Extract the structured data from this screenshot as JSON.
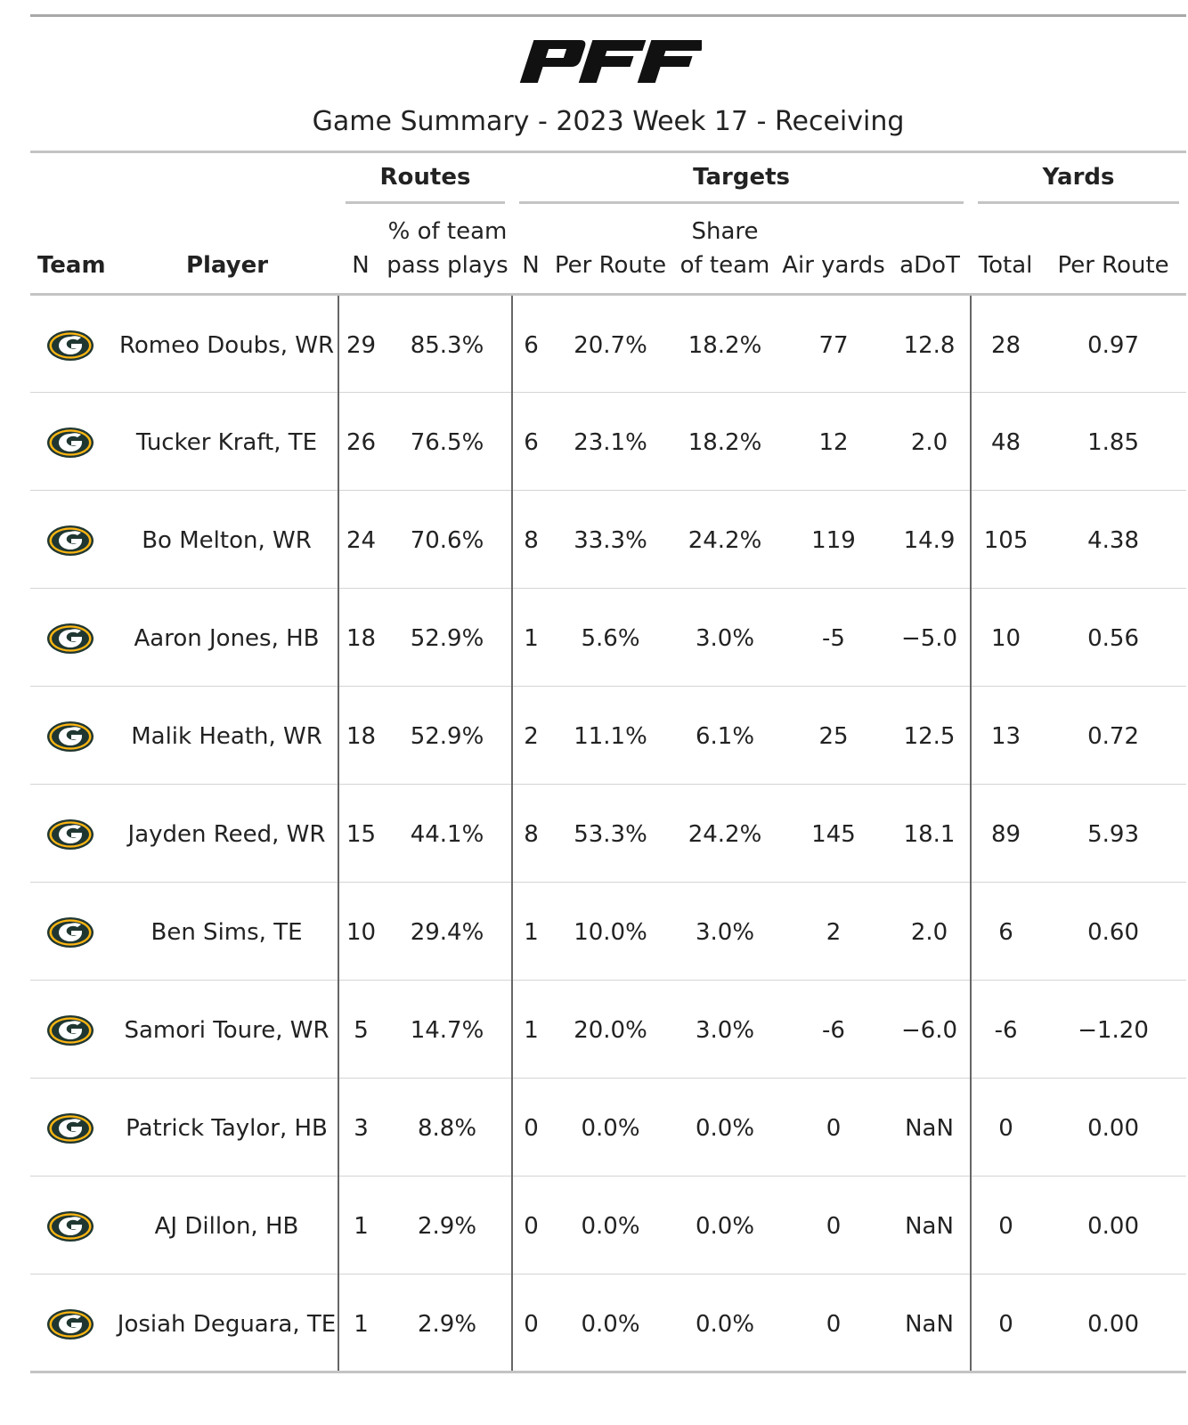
{
  "header": {
    "logo_text": "PFF",
    "subtitle": "Game Summary - 2023 Week 17 - Receiving"
  },
  "groups": {
    "routes": "Routes",
    "targets": "Targets",
    "yards": "Yards"
  },
  "columns": {
    "team": "Team",
    "player": "Player",
    "routes_n": "N",
    "routes_pct_line1": "% of team",
    "routes_pct_line2": "pass plays",
    "targets_n": "N",
    "targets_per_route": "Per Route",
    "targets_share_line1": "Share",
    "targets_share_line2": "of team",
    "air_yards": "Air yards",
    "adot": "aDoT",
    "yards_total": "Total",
    "yards_per_route": "Per Route"
  },
  "colors": {
    "team_logo_green": "#203731",
    "team_logo_gold": "#FFB612"
  },
  "rows": [
    {
      "team_icon": "packers-logo-icon",
      "player": "Romeo Doubs, WR",
      "routes_n": "29",
      "routes_pct": "85.3%",
      "targets_n": "6",
      "targets_per_route": "20.7%",
      "targets_share": "18.2%",
      "air_yards": "77",
      "adot": "12.8",
      "yards_total": "28",
      "yards_per_route": "0.97"
    },
    {
      "team_icon": "packers-logo-icon",
      "player": "Tucker Kraft, TE",
      "routes_n": "26",
      "routes_pct": "76.5%",
      "targets_n": "6",
      "targets_per_route": "23.1%",
      "targets_share": "18.2%",
      "air_yards": "12",
      "adot": "2.0",
      "yards_total": "48",
      "yards_per_route": "1.85"
    },
    {
      "team_icon": "packers-logo-icon",
      "player": "Bo Melton, WR",
      "routes_n": "24",
      "routes_pct": "70.6%",
      "targets_n": "8",
      "targets_per_route": "33.3%",
      "targets_share": "24.2%",
      "air_yards": "119",
      "adot": "14.9",
      "yards_total": "105",
      "yards_per_route": "4.38"
    },
    {
      "team_icon": "packers-logo-icon",
      "player": "Aaron Jones, HB",
      "routes_n": "18",
      "routes_pct": "52.9%",
      "targets_n": "1",
      "targets_per_route": "5.6%",
      "targets_share": "3.0%",
      "air_yards": "-5",
      "adot": "−5.0",
      "yards_total": "10",
      "yards_per_route": "0.56"
    },
    {
      "team_icon": "packers-logo-icon",
      "player": "Malik Heath, WR",
      "routes_n": "18",
      "routes_pct": "52.9%",
      "targets_n": "2",
      "targets_per_route": "11.1%",
      "targets_share": "6.1%",
      "air_yards": "25",
      "adot": "12.5",
      "yards_total": "13",
      "yards_per_route": "0.72"
    },
    {
      "team_icon": "packers-logo-icon",
      "player": "Jayden Reed, WR",
      "routes_n": "15",
      "routes_pct": "44.1%",
      "targets_n": "8",
      "targets_per_route": "53.3%",
      "targets_share": "24.2%",
      "air_yards": "145",
      "adot": "18.1",
      "yards_total": "89",
      "yards_per_route": "5.93"
    },
    {
      "team_icon": "packers-logo-icon",
      "player": "Ben Sims, TE",
      "routes_n": "10",
      "routes_pct": "29.4%",
      "targets_n": "1",
      "targets_per_route": "10.0%",
      "targets_share": "3.0%",
      "air_yards": "2",
      "adot": "2.0",
      "yards_total": "6",
      "yards_per_route": "0.60"
    },
    {
      "team_icon": "packers-logo-icon",
      "player": "Samori Toure, WR",
      "routes_n": "5",
      "routes_pct": "14.7%",
      "targets_n": "1",
      "targets_per_route": "20.0%",
      "targets_share": "3.0%",
      "air_yards": "-6",
      "adot": "−6.0",
      "yards_total": "-6",
      "yards_per_route": "−1.20"
    },
    {
      "team_icon": "packers-logo-icon",
      "player": "Patrick Taylor, HB",
      "routes_n": "3",
      "routes_pct": "8.8%",
      "targets_n": "0",
      "targets_per_route": "0.0%",
      "targets_share": "0.0%",
      "air_yards": "0",
      "adot": "NaN",
      "yards_total": "0",
      "yards_per_route": "0.00"
    },
    {
      "team_icon": "packers-logo-icon",
      "player": "AJ Dillon, HB",
      "routes_n": "1",
      "routes_pct": "2.9%",
      "targets_n": "0",
      "targets_per_route": "0.0%",
      "targets_share": "0.0%",
      "air_yards": "0",
      "adot": "NaN",
      "yards_total": "0",
      "yards_per_route": "0.00"
    },
    {
      "team_icon": "packers-logo-icon",
      "player": "Josiah Deguara, TE",
      "routes_n": "1",
      "routes_pct": "2.9%",
      "targets_n": "0",
      "targets_per_route": "0.0%",
      "targets_share": "0.0%",
      "air_yards": "0",
      "adot": "NaN",
      "yards_total": "0",
      "yards_per_route": "0.00"
    }
  ]
}
